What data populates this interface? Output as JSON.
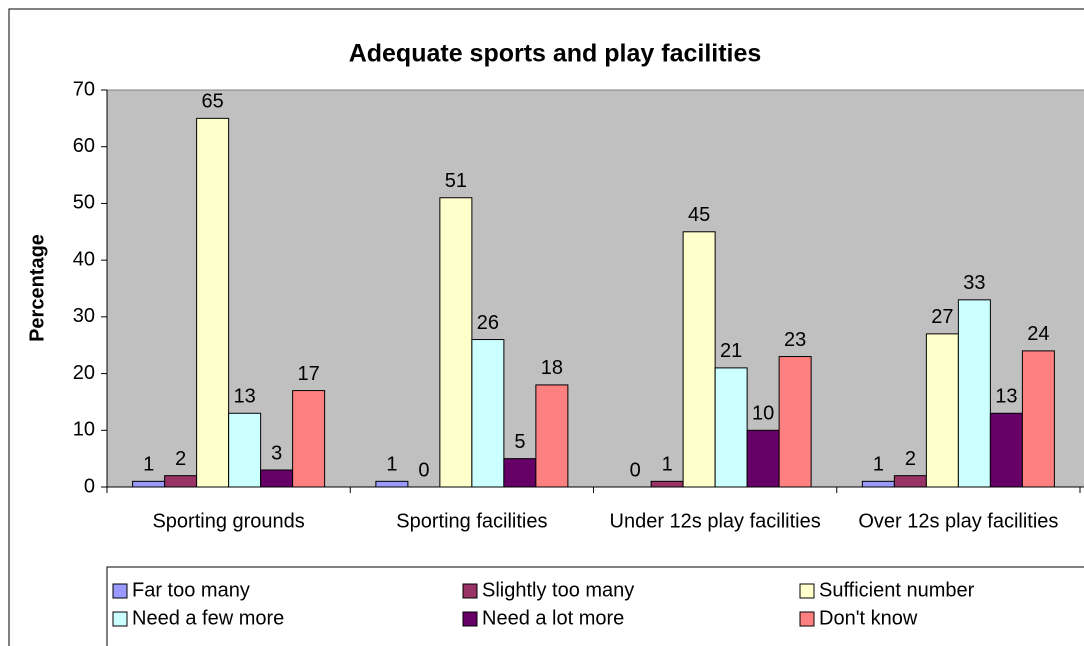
{
  "chart_data": {
    "type": "bar",
    "title": "Adequate sports and play facilities",
    "y_label": "Percentage",
    "categories": [
      "Sporting grounds",
      "Sporting facilities",
      "Under 12s play facilities",
      "Over 12s play facilities"
    ],
    "series": [
      {
        "name": "Far too many",
        "color": "#9999ff",
        "values": [
          1,
          1,
          0,
          1
        ]
      },
      {
        "name": "Slightly too many",
        "color": "#993366",
        "values": [
          2,
          0,
          1,
          2
        ]
      },
      {
        "name": "Sufficient number",
        "color": "#ffffcc",
        "values": [
          65,
          51,
          45,
          27
        ]
      },
      {
        "name": "Need a few more",
        "color": "#ccffff",
        "values": [
          13,
          26,
          21,
          33
        ]
      },
      {
        "name": "Need a lot more",
        "color": "#660066",
        "values": [
          3,
          5,
          10,
          13
        ]
      },
      {
        "name": "Don't know",
        "color": "#ff8080",
        "values": [
          17,
          18,
          23,
          24
        ]
      }
    ],
    "ylim": [
      0,
      70
    ],
    "yticks": [
      0,
      10,
      20,
      30,
      40,
      50,
      60,
      70
    ],
    "grid": false
  }
}
